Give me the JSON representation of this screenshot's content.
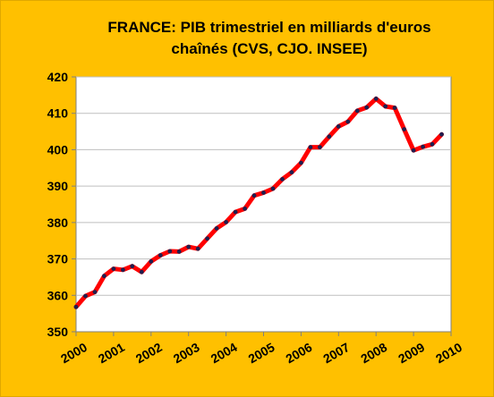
{
  "chart_data": {
    "type": "line",
    "title_line1": "FRANCE: PIB trimestriel en milliards d'euros",
    "title_line2": "chaînés  (CVS, CJO. INSEE)",
    "xlabel": "",
    "ylabel": "",
    "ylim": [
      350,
      420
    ],
    "yticks": [
      350,
      360,
      370,
      380,
      390,
      400,
      410,
      420
    ],
    "xlim": [
      2000,
      2010
    ],
    "xticks": [
      "2000",
      "2001",
      "2002",
      "2003",
      "2004",
      "2005",
      "2006",
      "2007",
      "2008",
      "2009",
      "2010"
    ],
    "grid": "horizontal",
    "series": [
      {
        "values": [
          356.8,
          359.8,
          360.9,
          365.3,
          367.3,
          367.0,
          368.0,
          366.4,
          369.3,
          371.0,
          372.1,
          372.0,
          373.3,
          372.8,
          375.6,
          378.4,
          380.1,
          382.9,
          383.8,
          387.4,
          388.2,
          389.3,
          391.9,
          393.8,
          396.4,
          400.7,
          400.7,
          403.6,
          406.4,
          407.7,
          410.7,
          411.6,
          414.0,
          411.9,
          411.5,
          405.6,
          399.8,
          400.8,
          401.5,
          404.2
        ]
      }
    ],
    "colors": {
      "background": "#FFC000",
      "plot_area": "#FFFFFF",
      "line": "#FF0000",
      "markers": "#1F1F4F",
      "grid": "#BFBFBF"
    }
  }
}
